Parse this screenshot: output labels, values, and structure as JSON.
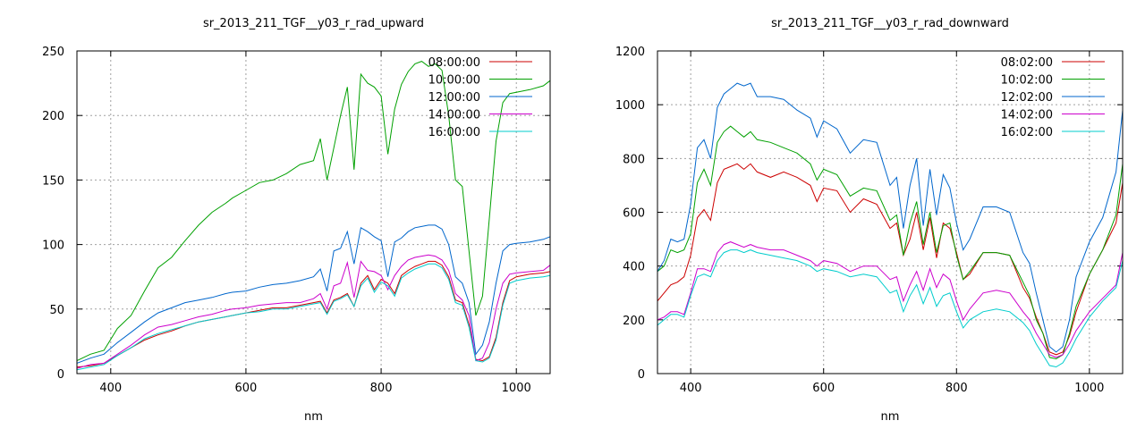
{
  "chart_data": [
    {
      "type": "line",
      "title": "sr_2013_211_TGF__y03_r_rad_upward",
      "xlabel": "nm",
      "ylabel": "",
      "xlim": [
        350,
        1050
      ],
      "ylim": [
        0,
        250
      ],
      "xticks": [
        400,
        600,
        800,
        1000
      ],
      "yticks": [
        0,
        50,
        100,
        150,
        200,
        250
      ],
      "grid": true,
      "legend_position": "top-right",
      "x": [
        350,
        370,
        390,
        410,
        430,
        450,
        470,
        490,
        510,
        530,
        550,
        570,
        580,
        600,
        620,
        640,
        660,
        680,
        700,
        710,
        720,
        730,
        740,
        750,
        760,
        770,
        780,
        790,
        800,
        810,
        820,
        830,
        840,
        850,
        860,
        870,
        880,
        890,
        900,
        910,
        920,
        930,
        940,
        950,
        960,
        970,
        980,
        990,
        1000,
        1020,
        1040,
        1050
      ],
      "series": [
        {
          "name": "08:00:00",
          "color": "#cc0000",
          "values": [
            5,
            6,
            8,
            14,
            20,
            26,
            30,
            33,
            37,
            40,
            42,
            44,
            45,
            47,
            49,
            51,
            51,
            53,
            55,
            56,
            47,
            57,
            59,
            62,
            52,
            70,
            76,
            65,
            73,
            70,
            62,
            76,
            80,
            83,
            85,
            87,
            87,
            84,
            75,
            57,
            55,
            38,
            11,
            10,
            13,
            28,
            55,
            72,
            75,
            77,
            78,
            79
          ]
        },
        {
          "name": "10:00:00",
          "color": "#00a000",
          "values": [
            10,
            15,
            18,
            35,
            45,
            64,
            82,
            90,
            103,
            115,
            125,
            132,
            136,
            142,
            148,
            150,
            155,
            162,
            165,
            182,
            150,
            175,
            200,
            222,
            158,
            232,
            225,
            222,
            215,
            170,
            205,
            224,
            234,
            240,
            242,
            238,
            240,
            235,
            200,
            150,
            145,
            95,
            45,
            60,
            120,
            180,
            210,
            217,
            218,
            220,
            223,
            227
          ]
        },
        {
          "name": "12:00:00",
          "color": "#0066cc",
          "values": [
            8,
            12,
            15,
            24,
            32,
            40,
            47,
            51,
            55,
            57,
            59,
            62,
            63,
            64,
            67,
            69,
            70,
            72,
            75,
            81,
            64,
            95,
            97,
            110,
            85,
            113,
            110,
            106,
            103,
            75,
            102,
            105,
            110,
            113,
            114,
            115,
            115,
            112,
            100,
            75,
            70,
            55,
            15,
            22,
            40,
            70,
            95,
            100,
            101,
            102,
            104,
            106
          ]
        },
        {
          "name": "14:00:00",
          "color": "#cc00cc",
          "values": [
            4,
            7,
            8,
            15,
            22,
            30,
            36,
            38,
            41,
            44,
            46,
            49,
            50,
            51,
            53,
            54,
            55,
            55,
            58,
            62,
            50,
            68,
            70,
            86,
            59,
            87,
            80,
            79,
            76,
            65,
            76,
            83,
            88,
            90,
            91,
            92,
            91,
            88,
            80,
            62,
            57,
            45,
            10,
            12,
            24,
            50,
            70,
            77,
            78,
            79,
            80,
            84
          ]
        },
        {
          "name": "16:00:00",
          "color": "#00cccc",
          "values": [
            3,
            5,
            7,
            14,
            20,
            27,
            31,
            34,
            37,
            40,
            42,
            44,
            45,
            47,
            48,
            50,
            50,
            52,
            54,
            55,
            46,
            56,
            58,
            61,
            52,
            68,
            74,
            63,
            71,
            68,
            60,
            74,
            78,
            81,
            83,
            85,
            85,
            82,
            73,
            55,
            53,
            36,
            10,
            9,
            12,
            26,
            53,
            70,
            72,
            74,
            75,
            76
          ]
        }
      ]
    },
    {
      "type": "line",
      "title": "sr_2013_211_TGF__y03_r_rad_downward",
      "xlabel": "nm",
      "ylabel": "",
      "xlim": [
        350,
        1050
      ],
      "ylim": [
        0,
        1200
      ],
      "xticks": [
        400,
        600,
        800,
        1000
      ],
      "yticks": [
        0,
        200,
        400,
        600,
        800,
        1000,
        1200
      ],
      "grid": true,
      "legend_position": "top-right",
      "x": [
        350,
        360,
        370,
        380,
        390,
        400,
        410,
        420,
        430,
        440,
        450,
        460,
        470,
        480,
        490,
        500,
        520,
        540,
        560,
        580,
        590,
        600,
        620,
        640,
        660,
        680,
        700,
        710,
        720,
        730,
        740,
        750,
        760,
        770,
        780,
        790,
        800,
        810,
        820,
        840,
        860,
        880,
        900,
        910,
        920,
        930,
        940,
        950,
        960,
        970,
        980,
        1000,
        1020,
        1040,
        1050
      ],
      "series": [
        {
          "name": "08:02:00",
          "color": "#cc0000",
          "values": [
            270,
            300,
            330,
            340,
            360,
            440,
            580,
            610,
            570,
            710,
            760,
            770,
            780,
            760,
            780,
            750,
            730,
            750,
            730,
            700,
            640,
            690,
            680,
            600,
            650,
            630,
            540,
            560,
            440,
            500,
            600,
            460,
            580,
            430,
            560,
            540,
            450,
            350,
            370,
            450,
            450,
            440,
            320,
            280,
            210,
            150,
            80,
            70,
            80,
            140,
            230,
            370,
            460,
            560,
            710
          ]
        },
        {
          "name": "10:02:00",
          "color": "#00a000",
          "values": [
            380,
            400,
            460,
            450,
            460,
            520,
            710,
            760,
            700,
            860,
            900,
            920,
            900,
            880,
            900,
            870,
            860,
            840,
            820,
            780,
            720,
            760,
            740,
            660,
            690,
            680,
            570,
            590,
            440,
            560,
            640,
            480,
            600,
            450,
            550,
            560,
            440,
            350,
            380,
            450,
            450,
            440,
            340,
            290,
            200,
            150,
            60,
            55,
            70,
            150,
            250,
            370,
            460,
            590,
            780
          ]
        },
        {
          "name": "12:02:00",
          "color": "#0066cc",
          "values": [
            380,
            420,
            500,
            490,
            500,
            630,
            840,
            870,
            800,
            990,
            1040,
            1060,
            1080,
            1070,
            1080,
            1030,
            1030,
            1020,
            980,
            950,
            880,
            940,
            910,
            820,
            870,
            860,
            700,
            730,
            540,
            700,
            800,
            550,
            760,
            590,
            740,
            690,
            560,
            460,
            500,
            620,
            620,
            600,
            450,
            410,
            300,
            200,
            100,
            80,
            100,
            200,
            360,
            490,
            580,
            750,
            980
          ]
        },
        {
          "name": "14:02:00",
          "color": "#cc00cc",
          "values": [
            200,
            210,
            230,
            230,
            220,
            300,
            390,
            390,
            380,
            450,
            480,
            490,
            480,
            470,
            480,
            470,
            460,
            460,
            440,
            420,
            400,
            420,
            410,
            380,
            400,
            400,
            350,
            360,
            270,
            330,
            380,
            310,
            390,
            320,
            370,
            350,
            270,
            200,
            240,
            300,
            310,
            300,
            230,
            200,
            150,
            110,
            70,
            60,
            70,
            110,
            160,
            230,
            280,
            330,
            450
          ]
        },
        {
          "name": "16:02:00",
          "color": "#00cccc",
          "values": [
            180,
            200,
            220,
            220,
            210,
            290,
            360,
            370,
            360,
            420,
            450,
            460,
            460,
            450,
            460,
            450,
            440,
            430,
            420,
            400,
            380,
            390,
            380,
            360,
            370,
            360,
            300,
            310,
            230,
            290,
            330,
            260,
            320,
            250,
            290,
            300,
            230,
            170,
            200,
            230,
            240,
            230,
            190,
            160,
            110,
            70,
            30,
            25,
            40,
            80,
            130,
            210,
            270,
            320,
            420
          ]
        }
      ]
    }
  ]
}
